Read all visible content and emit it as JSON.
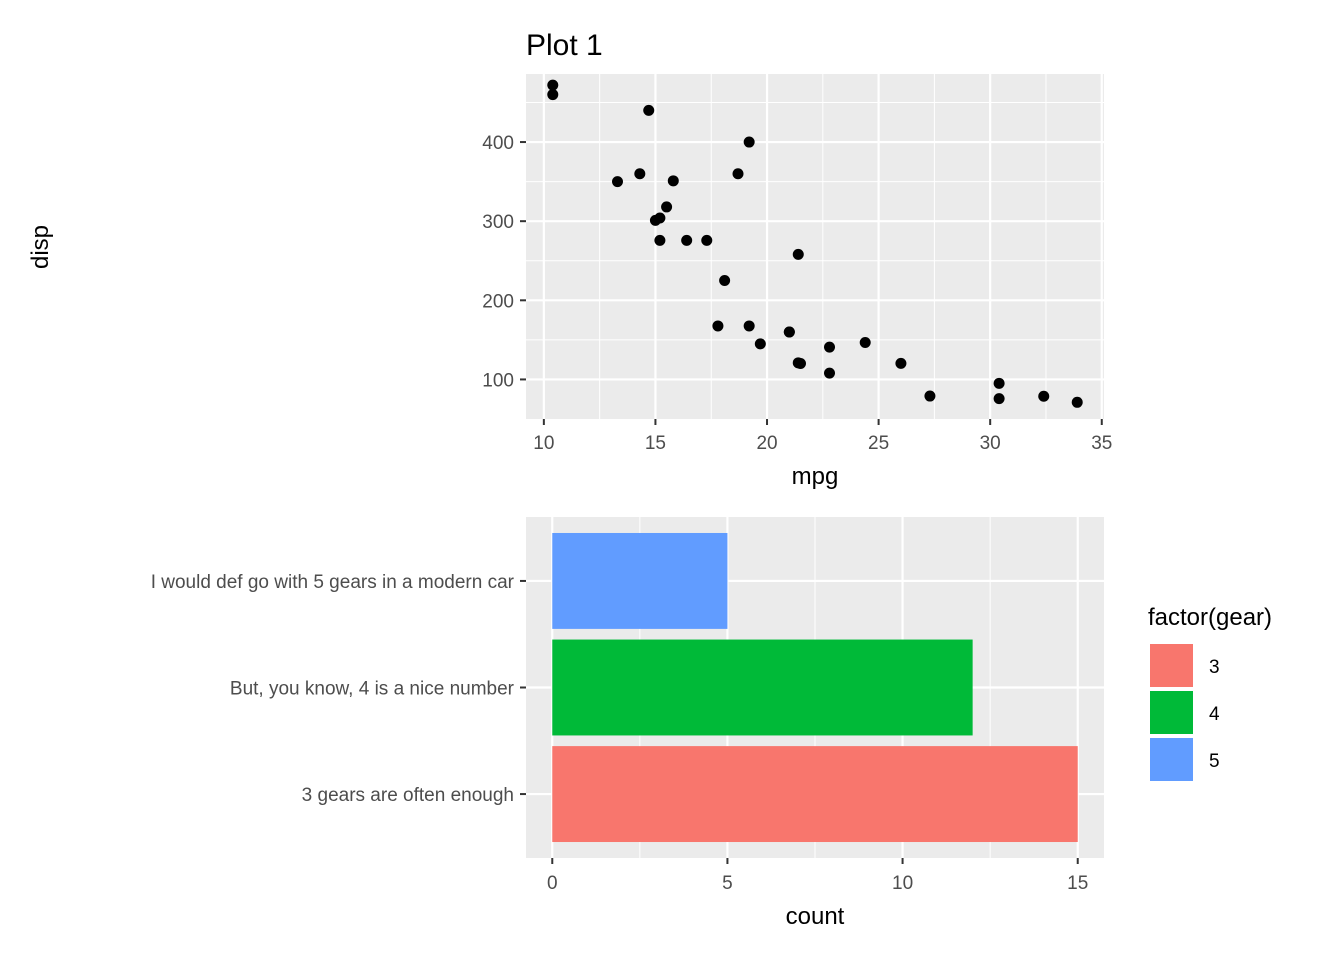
{
  "chart_data": [
    {
      "type": "scatter",
      "title": "Plot 1",
      "xlabel": "mpg",
      "ylabel": "disp",
      "xlim": [
        9.2,
        35.1
      ],
      "ylim": [
        50,
        486
      ],
      "xticks": [
        10,
        15,
        20,
        25,
        30,
        35
      ],
      "yticks": [
        100,
        200,
        300,
        400
      ],
      "grid": true,
      "point_color": "#000000",
      "panel_color": "#ebebeb",
      "points": [
        {
          "x": 21.0,
          "y": 160
        },
        {
          "x": 21.0,
          "y": 160
        },
        {
          "x": 22.8,
          "y": 108
        },
        {
          "x": 21.4,
          "y": 258
        },
        {
          "x": 18.7,
          "y": 360
        },
        {
          "x": 18.1,
          "y": 225
        },
        {
          "x": 14.3,
          "y": 360
        },
        {
          "x": 24.4,
          "y": 146.7
        },
        {
          "x": 22.8,
          "y": 140.8
        },
        {
          "x": 19.2,
          "y": 167.6
        },
        {
          "x": 17.8,
          "y": 167.6
        },
        {
          "x": 16.4,
          "y": 275.8
        },
        {
          "x": 17.3,
          "y": 275.8
        },
        {
          "x": 15.2,
          "y": 275.8
        },
        {
          "x": 10.4,
          "y": 472
        },
        {
          "x": 10.4,
          "y": 460
        },
        {
          "x": 14.7,
          "y": 440
        },
        {
          "x": 32.4,
          "y": 78.7
        },
        {
          "x": 30.4,
          "y": 75.7
        },
        {
          "x": 33.9,
          "y": 71.1
        },
        {
          "x": 21.5,
          "y": 120.1
        },
        {
          "x": 15.5,
          "y": 318
        },
        {
          "x": 15.2,
          "y": 304
        },
        {
          "x": 13.3,
          "y": 350
        },
        {
          "x": 19.2,
          "y": 400
        },
        {
          "x": 27.3,
          "y": 79
        },
        {
          "x": 26.0,
          "y": 120.3
        },
        {
          "x": 30.4,
          "y": 95.1
        },
        {
          "x": 15.8,
          "y": 351
        },
        {
          "x": 19.7,
          "y": 145
        },
        {
          "x": 15.0,
          "y": 301
        },
        {
          "x": 21.4,
          "y": 121
        }
      ]
    },
    {
      "type": "bar",
      "orientation": "horizontal",
      "xlabel": "count",
      "xlim": [
        -0.75,
        15.75
      ],
      "xticks": [
        0,
        5,
        10,
        15
      ],
      "grid": true,
      "panel_color": "#ebebeb",
      "categories": [
        "3 gears are often enough",
        "But, you know, 4 is a nice number",
        "I would def go with 5 gears in a modern car"
      ],
      "values": [
        15,
        12,
        5
      ],
      "fill_groups": [
        "3",
        "4",
        "5"
      ],
      "colors": [
        "#f8766d",
        "#00ba38",
        "#619cff"
      ],
      "legend": {
        "title": "factor(gear)",
        "position": "right",
        "entries": [
          {
            "label": "3",
            "color": "#f8766d"
          },
          {
            "label": "4",
            "color": "#00ba38"
          },
          {
            "label": "5",
            "color": "#619cff"
          }
        ]
      }
    }
  ]
}
